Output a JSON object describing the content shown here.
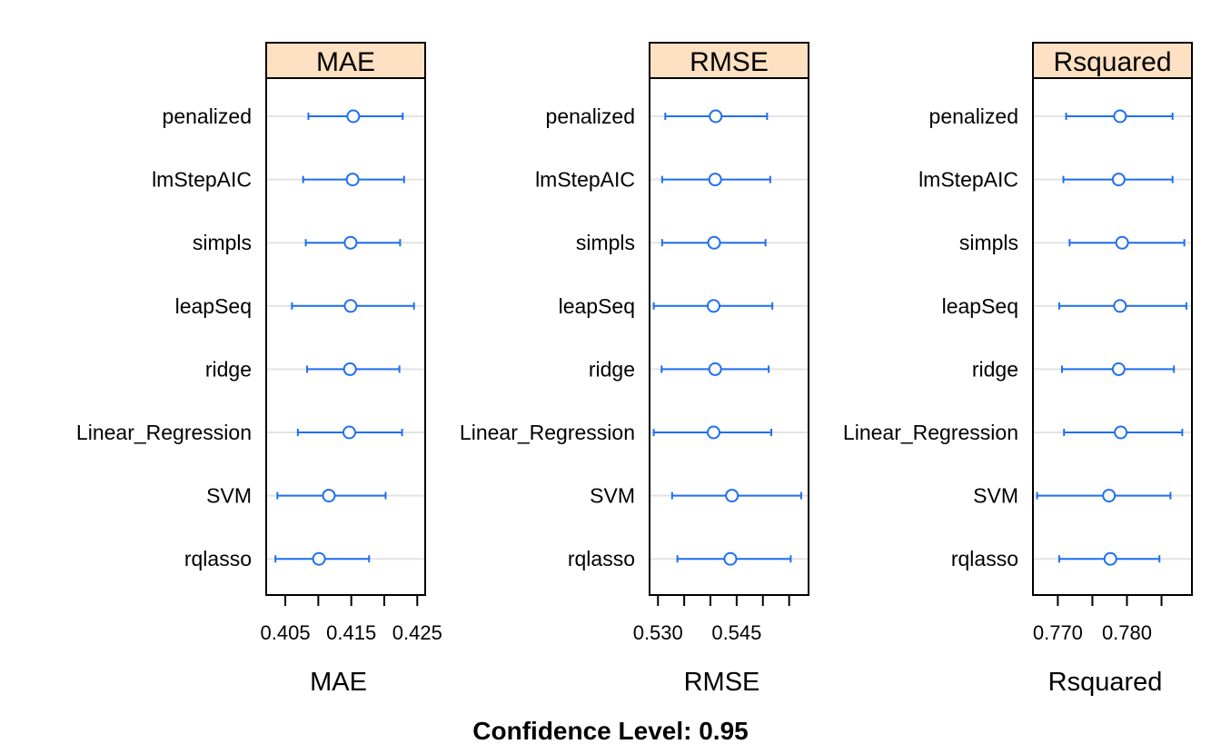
{
  "chart_data": {
    "type": "dotplot-intervals",
    "title": "Confidence Level: 0.95",
    "categories": [
      "penalized",
      "lmStepAIC",
      "simpls",
      "leapSeq",
      "ridge",
      "Linear_Regression",
      "SVM",
      "rqlasso"
    ],
    "panels": [
      {
        "strip": "MAE",
        "xlabel": "MAE",
        "xlim": [
          0.4021,
          0.4262
        ],
        "ticks": [
          0.405,
          0.41,
          0.415,
          0.42,
          0.425
        ],
        "tick_labels": [
          "0.405",
          "",
          "0.415",
          "",
          "0.425"
        ],
        "estimate": [
          0.4153,
          0.4152,
          0.4149,
          0.4149,
          0.4148,
          0.4147,
          0.4116,
          0.4101
        ],
        "lower": [
          0.4085,
          0.4077,
          0.4081,
          0.406,
          0.4083,
          0.4069,
          0.4038,
          0.4035
        ],
        "upper": [
          0.4228,
          0.423,
          0.4224,
          0.4245,
          0.4223,
          0.4227,
          0.4202,
          0.4177
        ]
      },
      {
        "strip": "RMSE",
        "xlabel": "RMSE",
        "xlim": [
          0.5284,
          0.5587
        ],
        "ticks": [
          0.53,
          0.535,
          0.54,
          0.545,
          0.55,
          0.555
        ],
        "tick_labels": [
          "0.530",
          "",
          "",
          "0.545",
          "",
          ""
        ],
        "estimate": [
          0.541,
          0.5409,
          0.5407,
          0.5406,
          0.5409,
          0.5406,
          0.5441,
          0.5438
        ],
        "lower": [
          0.5314,
          0.5308,
          0.5308,
          0.5292,
          0.5307,
          0.5292,
          0.5327,
          0.5337
        ],
        "upper": [
          0.5508,
          0.5514,
          0.5505,
          0.5518,
          0.5511,
          0.5516,
          0.5573,
          0.5553
        ]
      },
      {
        "strip": "Rsquared",
        "xlabel": "Rsquared",
        "xlim": [
          0.7664,
          0.7894
        ],
        "ticks": [
          0.77,
          0.775,
          0.78,
          0.785
        ],
        "tick_labels": [
          "0.770",
          "",
          "0.780",
          ""
        ],
        "estimate": [
          0.779,
          0.7788,
          0.7793,
          0.779,
          0.7788,
          0.7791,
          0.7774,
          0.7776
        ],
        "lower": [
          0.7712,
          0.7708,
          0.7717,
          0.7702,
          0.7706,
          0.7709,
          0.767,
          0.7702
        ],
        "upper": [
          0.7866,
          0.7866,
          0.7883,
          0.7886,
          0.7868,
          0.788,
          0.7863,
          0.7847
        ]
      }
    ],
    "grid": true,
    "point_color": "#1f6ff0",
    "strip_color": "#fee0c2"
  }
}
